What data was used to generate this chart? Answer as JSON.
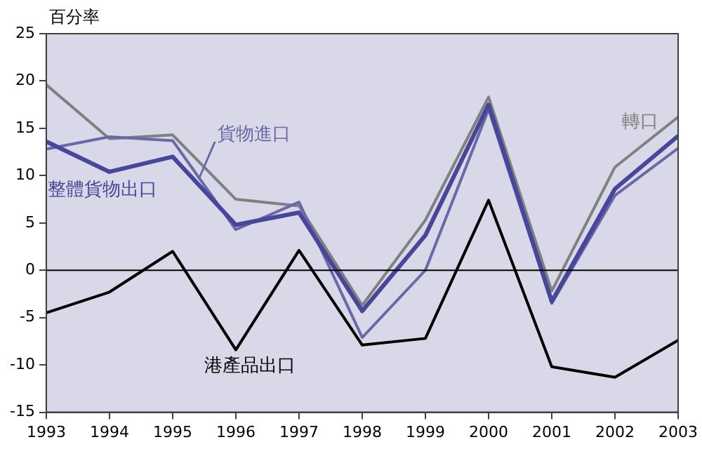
{
  "chart_data": {
    "type": "line",
    "ylabel": "百分率",
    "x": [
      1993,
      1994,
      1995,
      1996,
      1997,
      1998,
      1999,
      2000,
      2001,
      2002,
      2003
    ],
    "series": [
      {
        "name": "轉口",
        "color": "#808080",
        "values": [
          19.6,
          13.9,
          14.3,
          7.5,
          6.8,
          -3.7,
          5.3,
          18.3,
          -2.2,
          10.9,
          16.2
        ]
      },
      {
        "name": "貨物進口",
        "color": "#6a68a8",
        "values": [
          12.8,
          14.1,
          13.7,
          4.3,
          7.2,
          -7.1,
          0.0,
          17.0,
          -3.5,
          7.9,
          12.9
        ]
      },
      {
        "name": "整體貨物出口",
        "color": "#46469a",
        "values": [
          13.6,
          10.4,
          12.0,
          4.8,
          6.1,
          -4.3,
          3.7,
          17.5,
          -3.3,
          8.6,
          14.2
        ]
      },
      {
        "name": "港產品出口",
        "color": "#000000",
        "values": [
          -4.5,
          -2.3,
          2.0,
          -8.4,
          2.1,
          -7.9,
          -7.2,
          7.4,
          -10.2,
          -11.3,
          -7.4
        ]
      }
    ],
    "xlim": [
      1993,
      2003
    ],
    "xticks": [
      1993,
      1994,
      1995,
      1996,
      1997,
      1998,
      1999,
      2000,
      2001,
      2002,
      2003
    ],
    "ylim": [
      -15,
      25
    ],
    "yticks": [
      -15,
      -10,
      -5,
      0,
      5,
      10,
      15,
      20,
      25
    ],
    "ref_lines": [
      {
        "axis": "y",
        "value": 0,
        "color": "#000000"
      }
    ],
    "grid": false,
    "legend": false,
    "marker": "none",
    "line_style": "solid"
  }
}
